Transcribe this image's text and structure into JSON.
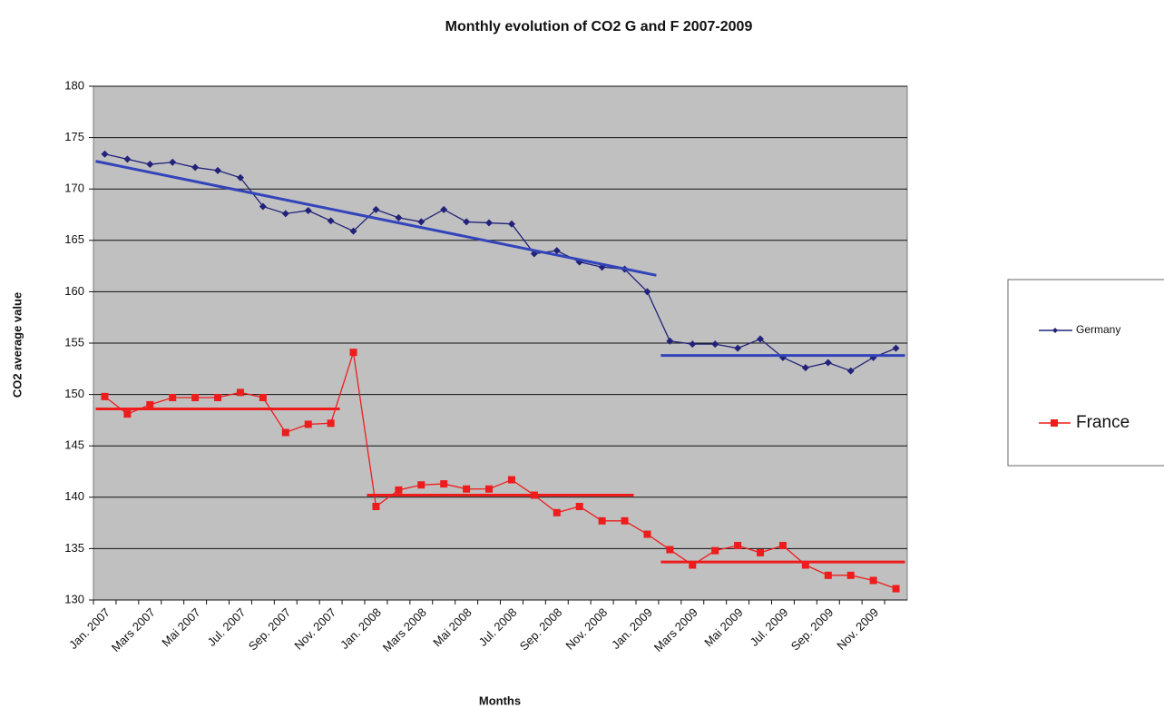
{
  "chart_data": {
    "type": "line",
    "title": "Monthly evolution of CO2 G and F 2007-2009",
    "x_label": "Months",
    "y_label": "CO2 average value",
    "categories": [
      "Jan. 2007",
      null,
      "Mars 2007",
      null,
      "Mai 2007",
      null,
      "Jul. 2007",
      null,
      "Sep. 2007",
      null,
      "Nov. 2007",
      null,
      "Jan. 2008",
      null,
      "Mars 2008",
      null,
      "Mai 2008",
      null,
      "Jul. 2008",
      null,
      "Sep. 2008",
      null,
      "Nov. 2008",
      null,
      "Jan. 2009",
      null,
      "Mars 2009",
      null,
      "Mai 2009",
      null,
      "Jul. 2009",
      null,
      "Sep. 2009",
      null,
      "Nov. 2009",
      null
    ],
    "series": [
      {
        "name": "Germany",
        "color": "#22227a",
        "marker": "diamond",
        "values": [
          173.4,
          172.9,
          172.4,
          172.6,
          172.1,
          171.8,
          171.1,
          168.3,
          167.6,
          167.9,
          166.9,
          165.9,
          168.0,
          167.2,
          166.8,
          168.0,
          166.8,
          166.7,
          166.6,
          163.7,
          164.0,
          162.9,
          162.4,
          162.2,
          160.0,
          155.2,
          154.9,
          154.9,
          154.5,
          155.4,
          153.6,
          152.6,
          153.1,
          152.3,
          153.6,
          154.5
        ]
      },
      {
        "name": "France",
        "color": "#ee1c1c",
        "marker": "square",
        "values": [
          149.8,
          148.1,
          149.0,
          149.7,
          149.7,
          149.7,
          150.2,
          149.7,
          146.3,
          147.1,
          147.2,
          154.1,
          139.1,
          140.7,
          141.2,
          141.3,
          140.8,
          140.8,
          141.7,
          140.2,
          138.5,
          139.1,
          137.7,
          137.7,
          136.4,
          134.9,
          133.4,
          134.8,
          135.3,
          134.6,
          135.3,
          133.4,
          132.4,
          132.4,
          131.9,
          131.1
        ]
      }
    ],
    "trendlines": [
      {
        "color": "#3344bb",
        "start": 0,
        "end": 24,
        "values": [
          172.7,
          161.6
        ]
      },
      {
        "color": "#3344bb",
        "start": 25,
        "end": 35,
        "values": [
          153.8,
          153.8
        ]
      },
      {
        "color": "#ee1c1c",
        "start": 0,
        "end": 10,
        "values": [
          148.6,
          148.6
        ]
      },
      {
        "color": "#ee1c1c",
        "start": 12,
        "end": 23,
        "values": [
          140.2,
          140.2
        ]
      },
      {
        "color": "#ee1c1c",
        "start": 25,
        "end": 35,
        "values": [
          133.7,
          133.7
        ]
      }
    ],
    "ylim": [
      130,
      180
    ],
    "yticks": [
      130,
      135,
      140,
      145,
      150,
      155,
      160,
      165,
      170,
      175,
      180
    ],
    "grid": true,
    "plot_background": "#c0c0c0",
    "legend": "right"
  }
}
